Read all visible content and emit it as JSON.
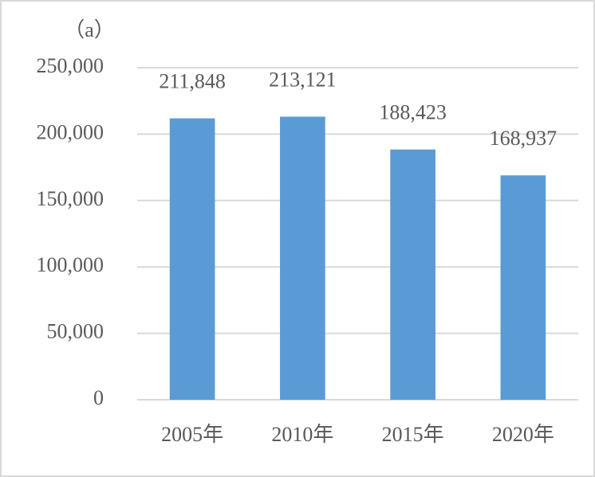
{
  "chart_data": {
    "type": "bar",
    "title": "（a）",
    "categories": [
      "2005年",
      "2010年",
      "2015年",
      "2020年"
    ],
    "values": [
      211848,
      213121,
      188423,
      168937
    ],
    "value_labels": [
      "211,848",
      "213,121",
      "188,423",
      "168,937"
    ],
    "color": "#5b9bd5",
    "ylim": [
      0,
      250000
    ],
    "yticks": [
      0,
      {
        "value": 50000,
        "label": "50,000"
      },
      {
        "value": 100000,
        "label": "100,000"
      },
      {
        "value": 150000,
        "label": "150,000"
      },
      {
        "value": 200000,
        "label": "200,000"
      },
      {
        "value": 250000,
        "label": "250,000"
      }
    ],
    "grid": true
  }
}
